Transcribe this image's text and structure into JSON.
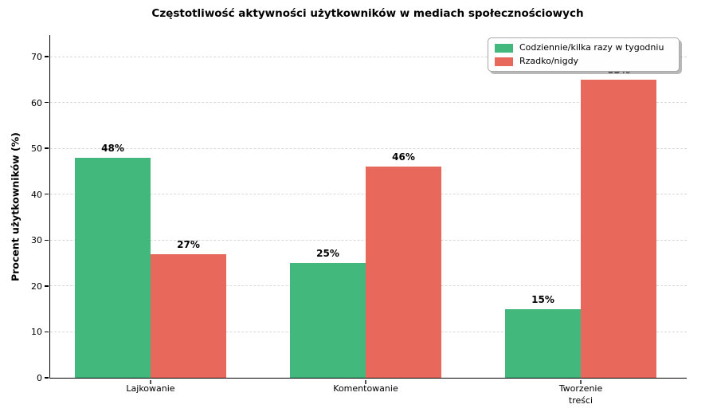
{
  "chart_data": {
    "type": "bar",
    "title": "Częstotliwość aktywności użytkowników w mediach społecznościowych",
    "xlabel": "",
    "ylabel": "Procent użytkowników (%)",
    "categories": [
      "Lajkowanie",
      "Komentowanie",
      "Tworzenie\ntreści"
    ],
    "series": [
      {
        "name": "Codziennie/kilka razy w tygodniu",
        "color": "#43b87c",
        "values": [
          48,
          25,
          15
        ]
      },
      {
        "name": "Rzadko/nigdy",
        "color": "#e8685c",
        "values": [
          27,
          46,
          65
        ]
      }
    ],
    "value_labels": [
      [
        "48%",
        "25%",
        "15%"
      ],
      [
        "27%",
        "46%",
        "65%"
      ]
    ],
    "ylim": [
      0,
      70
    ],
    "yticks": [
      "0",
      "10",
      "20",
      "30",
      "40",
      "50",
      "60",
      "70"
    ],
    "grid": "horizontal-dashed",
    "legend_position": "upper-right",
    "axis_color": "#000000",
    "grid_color": "#d9d9d9"
  }
}
